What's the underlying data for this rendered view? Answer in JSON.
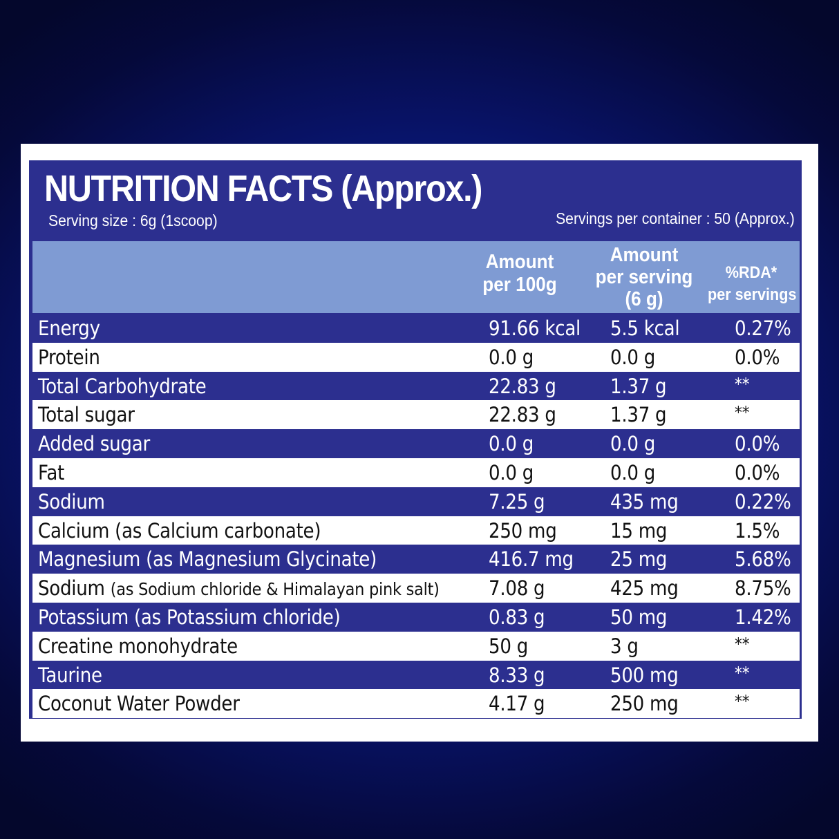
{
  "title": "NUTRITION FACTS (Approx.)",
  "serving_size": "Serving size : 6g (1scoop)",
  "servings_per_container": "Servings per container : 50 (Approx.)",
  "columns": {
    "per_100g_line1": "Amount",
    "per_100g_line2": "per 100g",
    "per_serving_line1": "Amount",
    "per_serving_line2": "per serving",
    "per_serving_line3": "(6 g)",
    "rda_line1": "%RDA*",
    "rda_line2": "per servings"
  },
  "rows": [
    {
      "name": "Energy",
      "note": "",
      "per_100g": "91.66 kcal",
      "per_serving": "5.5 kcal",
      "rda": "0.27%"
    },
    {
      "name": "Protein",
      "note": "",
      "per_100g": "0.0 g",
      "per_serving": "0.0 g",
      "rda": "0.0%"
    },
    {
      "name": "Total Carbohydrate",
      "note": "",
      "per_100g": "22.83 g",
      "per_serving": "1.37 g",
      "rda": "**"
    },
    {
      "name": "Total sugar",
      "note": "",
      "per_100g": "22.83 g",
      "per_serving": "1.37 g",
      "rda": "**"
    },
    {
      "name": "Added sugar",
      "note": "",
      "per_100g": "0.0 g",
      "per_serving": "0.0 g",
      "rda": "0.0%"
    },
    {
      "name": "Fat",
      "note": "",
      "per_100g": "0.0 g",
      "per_serving": "0.0 g",
      "rda": "0.0%"
    },
    {
      "name": "Sodium",
      "note": "",
      "per_100g": "7.25 g",
      "per_serving": "435 mg",
      "rda": "0.22%"
    },
    {
      "name": "Calcium (as Calcium carbonate)",
      "note": "",
      "per_100g": "250 mg",
      "per_serving": "15 mg",
      "rda": "1.5%"
    },
    {
      "name": "Magnesium (as Magnesium Glycinate)",
      "note": "",
      "per_100g": "416.7 mg",
      "per_serving": "25 mg",
      "rda": "5.68%"
    },
    {
      "name": "Sodium ",
      "note": "(as Sodium chloride & Himalayan pink salt)",
      "per_100g": "7.08 g",
      "per_serving": "425 mg",
      "rda": "8.75%"
    },
    {
      "name": "Potassium (as Potassium chloride)",
      "note": "",
      "per_100g": "0.83 g",
      "per_serving": "50 mg",
      "rda": "1.42%"
    },
    {
      "name": "Creatine monohydrate",
      "note": "",
      "per_100g": "50 g",
      "per_serving": "3 g",
      "rda": "**"
    },
    {
      "name": "Taurine",
      "note": "",
      "per_100g": "8.33 g",
      "per_serving": "500 mg",
      "rda": "**"
    },
    {
      "name": "Coconut Water Powder",
      "note": "",
      "per_100g": "4.17 g",
      "per_serving": "250 mg",
      "rda": "**"
    }
  ],
  "colors": {
    "panel": "#2c2f8f",
    "header": "#7f9bd3",
    "background": "#0a1f8c"
  }
}
